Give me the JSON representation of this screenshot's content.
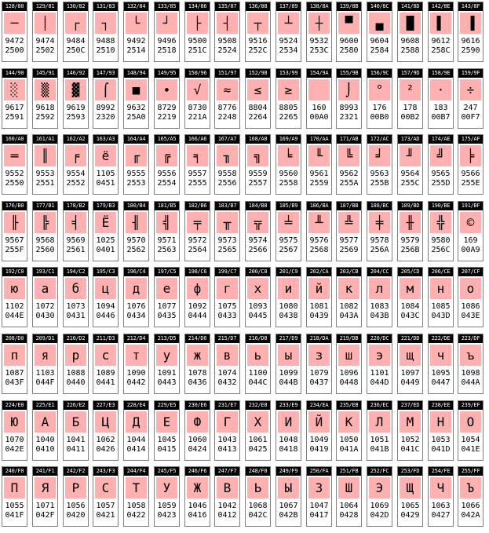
{
  "cells": [
    {
      "hdr": "128/80",
      "ch": "─",
      "dec": "9472",
      "hex": "2500"
    },
    {
      "hdr": "129/81",
      "ch": "│",
      "dec": "9474",
      "hex": "2502"
    },
    {
      "hdr": "130/82",
      "ch": "┌",
      "dec": "9484",
      "hex": "250C"
    },
    {
      "hdr": "131/83",
      "ch": "┐",
      "dec": "9488",
      "hex": "2510"
    },
    {
      "hdr": "132/84",
      "ch": "└",
      "dec": "9492",
      "hex": "2514"
    },
    {
      "hdr": "133/85",
      "ch": "┘",
      "dec": "9496",
      "hex": "2518"
    },
    {
      "hdr": "134/86",
      "ch": "├",
      "dec": "9500",
      "hex": "251C"
    },
    {
      "hdr": "135/87",
      "ch": "┤",
      "dec": "9508",
      "hex": "2524"
    },
    {
      "hdr": "136/88",
      "ch": "┬",
      "dec": "9516",
      "hex": "252C"
    },
    {
      "hdr": "137/89",
      "ch": "┴",
      "dec": "9524",
      "hex": "2534"
    },
    {
      "hdr": "138/8A",
      "ch": "┼",
      "dec": "9532",
      "hex": "253C"
    },
    {
      "hdr": "139/8B",
      "ch": "▀",
      "dec": "9600",
      "hex": "2580"
    },
    {
      "hdr": "140/8C",
      "ch": "▄",
      "dec": "9604",
      "hex": "2584"
    },
    {
      "hdr": "141/8D",
      "ch": "█",
      "dec": "9608",
      "hex": "2588"
    },
    {
      "hdr": "142/8E",
      "ch": "▌",
      "dec": "9612",
      "hex": "258C"
    },
    {
      "hdr": "143/8F",
      "ch": "▐",
      "dec": "9616",
      "hex": "2590"
    },
    {
      "hdr": "144/90",
      "ch": "░",
      "dec": "9617",
      "hex": "2591"
    },
    {
      "hdr": "145/91",
      "ch": "▒",
      "dec": "9618",
      "hex": "2592"
    },
    {
      "hdr": "146/92",
      "ch": "▓",
      "dec": "9619",
      "hex": "2593"
    },
    {
      "hdr": "147/93",
      "ch": "⌠",
      "dec": "8992",
      "hex": "2320"
    },
    {
      "hdr": "148/94",
      "ch": "■",
      "dec": "9632",
      "hex": "25A0"
    },
    {
      "hdr": "149/95",
      "ch": "∙",
      "dec": "8729",
      "hex": "2219"
    },
    {
      "hdr": "150/96",
      "ch": "√",
      "dec": "8730",
      "hex": "221A"
    },
    {
      "hdr": "151/97",
      "ch": "≈",
      "dec": "8776",
      "hex": "2248"
    },
    {
      "hdr": "152/98",
      "ch": "≤",
      "dec": "8804",
      "hex": "2264"
    },
    {
      "hdr": "153/99",
      "ch": "≥",
      "dec": "8805",
      "hex": "2265"
    },
    {
      "hdr": "154/9A",
      "ch": " ",
      "dec": "160",
      "hex": "00A0"
    },
    {
      "hdr": "155/9B",
      "ch": "⌡",
      "dec": "8993",
      "hex": "2321"
    },
    {
      "hdr": "156/9C",
      "ch": "°",
      "dec": "176",
      "hex": "00B0"
    },
    {
      "hdr": "157/9D",
      "ch": "²",
      "dec": "178",
      "hex": "00B2"
    },
    {
      "hdr": "158/9E",
      "ch": "·",
      "dec": "183",
      "hex": "00B7"
    },
    {
      "hdr": "159/9F",
      "ch": "÷",
      "dec": "247",
      "hex": "00F7"
    },
    {
      "hdr": "160/A0",
      "ch": "═",
      "dec": "9552",
      "hex": "2550"
    },
    {
      "hdr": "161/A1",
      "ch": "║",
      "dec": "9553",
      "hex": "2551"
    },
    {
      "hdr": "162/A2",
      "ch": "╒",
      "dec": "9554",
      "hex": "2552"
    },
    {
      "hdr": "163/A3",
      "ch": "ё",
      "dec": "1105",
      "hex": "0451"
    },
    {
      "hdr": "164/A4",
      "ch": "╓",
      "dec": "9555",
      "hex": "2553"
    },
    {
      "hdr": "165/A5",
      "ch": "╔",
      "dec": "9556",
      "hex": "2554"
    },
    {
      "hdr": "166/A6",
      "ch": "╕",
      "dec": "9557",
      "hex": "2555"
    },
    {
      "hdr": "167/A7",
      "ch": "╖",
      "dec": "9558",
      "hex": "2556"
    },
    {
      "hdr": "168/A8",
      "ch": "╗",
      "dec": "9559",
      "hex": "2557"
    },
    {
      "hdr": "169/A9",
      "ch": "╘",
      "dec": "9560",
      "hex": "2558"
    },
    {
      "hdr": "170/AA",
      "ch": "╙",
      "dec": "9561",
      "hex": "2559"
    },
    {
      "hdr": "171/AB",
      "ch": "╚",
      "dec": "9562",
      "hex": "255A"
    },
    {
      "hdr": "172/AC",
      "ch": "╛",
      "dec": "9563",
      "hex": "255B"
    },
    {
      "hdr": "173/AD",
      "ch": "╜",
      "dec": "9564",
      "hex": "255C"
    },
    {
      "hdr": "174/AE",
      "ch": "╝",
      "dec": "9565",
      "hex": "255D"
    },
    {
      "hdr": "175/AF",
      "ch": "╞",
      "dec": "9566",
      "hex": "255E"
    },
    {
      "hdr": "176/B0",
      "ch": "╟",
      "dec": "9567",
      "hex": "255F"
    },
    {
      "hdr": "177/B1",
      "ch": "╠",
      "dec": "9568",
      "hex": "2560"
    },
    {
      "hdr": "178/B2",
      "ch": "╡",
      "dec": "9569",
      "hex": "2561"
    },
    {
      "hdr": "179/B3",
      "ch": "Ё",
      "dec": "1025",
      "hex": "0401"
    },
    {
      "hdr": "180/B4",
      "ch": "╢",
      "dec": "9570",
      "hex": "2562"
    },
    {
      "hdr": "181/B5",
      "ch": "╣",
      "dec": "9571",
      "hex": "2563"
    },
    {
      "hdr": "182/B6",
      "ch": "╤",
      "dec": "9572",
      "hex": "2564"
    },
    {
      "hdr": "183/B7",
      "ch": "╥",
      "dec": "9573",
      "hex": "2565"
    },
    {
      "hdr": "184/B8",
      "ch": "╦",
      "dec": "9574",
      "hex": "2566"
    },
    {
      "hdr": "185/B9",
      "ch": "╧",
      "dec": "9575",
      "hex": "2567"
    },
    {
      "hdr": "186/BA",
      "ch": "╨",
      "dec": "9576",
      "hex": "2568"
    },
    {
      "hdr": "187/BB",
      "ch": "╩",
      "dec": "9577",
      "hex": "2569"
    },
    {
      "hdr": "188/BC",
      "ch": "╪",
      "dec": "9578",
      "hex": "256A"
    },
    {
      "hdr": "189/BD",
      "ch": "╫",
      "dec": "9579",
      "hex": "256B"
    },
    {
      "hdr": "190/BE",
      "ch": "╬",
      "dec": "9580",
      "hex": "256C"
    },
    {
      "hdr": "191/BF",
      "ch": "©",
      "dec": "169",
      "hex": "00A9"
    },
    {
      "hdr": "192/C0",
      "ch": "ю",
      "dec": "1102",
      "hex": "044E"
    },
    {
      "hdr": "193/C1",
      "ch": "а",
      "dec": "1072",
      "hex": "0430"
    },
    {
      "hdr": "194/C2",
      "ch": "б",
      "dec": "1073",
      "hex": "0431"
    },
    {
      "hdr": "195/C3",
      "ch": "ц",
      "dec": "1094",
      "hex": "0446"
    },
    {
      "hdr": "196/C4",
      "ch": "д",
      "dec": "1076",
      "hex": "0434"
    },
    {
      "hdr": "197/C5",
      "ch": "е",
      "dec": "1077",
      "hex": "0435"
    },
    {
      "hdr": "198/C6",
      "ch": "ф",
      "dec": "1092",
      "hex": "0444"
    },
    {
      "hdr": "199/C7",
      "ch": "г",
      "dec": "1075",
      "hex": "0433"
    },
    {
      "hdr": "200/C8",
      "ch": "х",
      "dec": "1093",
      "hex": "0445"
    },
    {
      "hdr": "201/C9",
      "ch": "и",
      "dec": "1080",
      "hex": "0438"
    },
    {
      "hdr": "202/CA",
      "ch": "й",
      "dec": "1081",
      "hex": "0439"
    },
    {
      "hdr": "203/CB",
      "ch": "к",
      "dec": "1082",
      "hex": "043A"
    },
    {
      "hdr": "204/CC",
      "ch": "л",
      "dec": "1083",
      "hex": "043B"
    },
    {
      "hdr": "205/CD",
      "ch": "м",
      "dec": "1084",
      "hex": "043C"
    },
    {
      "hdr": "206/CE",
      "ch": "н",
      "dec": "1085",
      "hex": "043D"
    },
    {
      "hdr": "207/CF",
      "ch": "о",
      "dec": "1086",
      "hex": "043E"
    },
    {
      "hdr": "208/D0",
      "ch": "п",
      "dec": "1087",
      "hex": "043F"
    },
    {
      "hdr": "209/D1",
      "ch": "я",
      "dec": "1103",
      "hex": "044F"
    },
    {
      "hdr": "210/D2",
      "ch": "р",
      "dec": "1088",
      "hex": "0440"
    },
    {
      "hdr": "211/D3",
      "ch": "с",
      "dec": "1089",
      "hex": "0441"
    },
    {
      "hdr": "212/D4",
      "ch": "т",
      "dec": "1090",
      "hex": "0442"
    },
    {
      "hdr": "213/D5",
      "ch": "у",
      "dec": "1091",
      "hex": "0443"
    },
    {
      "hdr": "214/D6",
      "ch": "ж",
      "dec": "1078",
      "hex": "0436"
    },
    {
      "hdr": "215/D7",
      "ch": "в",
      "dec": "1074",
      "hex": "0432"
    },
    {
      "hdr": "216/D8",
      "ch": "ь",
      "dec": "1100",
      "hex": "044C"
    },
    {
      "hdr": "217/D9",
      "ch": "ы",
      "dec": "1099",
      "hex": "044B"
    },
    {
      "hdr": "218/DA",
      "ch": "з",
      "dec": "1079",
      "hex": "0437"
    },
    {
      "hdr": "219/DB",
      "ch": "ш",
      "dec": "1096",
      "hex": "0448"
    },
    {
      "hdr": "220/DC",
      "ch": "э",
      "dec": "1101",
      "hex": "044D"
    },
    {
      "hdr": "221/DD",
      "ch": "щ",
      "dec": "1097",
      "hex": "0449"
    },
    {
      "hdr": "222/DE",
      "ch": "ч",
      "dec": "1095",
      "hex": "0447"
    },
    {
      "hdr": "223/DF",
      "ch": "ъ",
      "dec": "1098",
      "hex": "044A"
    },
    {
      "hdr": "224/E0",
      "ch": "Ю",
      "dec": "1070",
      "hex": "042E"
    },
    {
      "hdr": "225/E1",
      "ch": "А",
      "dec": "1040",
      "hex": "0410"
    },
    {
      "hdr": "226/E2",
      "ch": "Б",
      "dec": "1041",
      "hex": "0411"
    },
    {
      "hdr": "227/E3",
      "ch": "Ц",
      "dec": "1062",
      "hex": "0426"
    },
    {
      "hdr": "228/E4",
      "ch": "Д",
      "dec": "1044",
      "hex": "0414"
    },
    {
      "hdr": "229/E5",
      "ch": "Е",
      "dec": "1045",
      "hex": "0415"
    },
    {
      "hdr": "230/E6",
      "ch": "Ф",
      "dec": "1060",
      "hex": "0424"
    },
    {
      "hdr": "231/E7",
      "ch": "Г",
      "dec": "1043",
      "hex": "0413"
    },
    {
      "hdr": "232/E8",
      "ch": "Х",
      "dec": "1061",
      "hex": "0425"
    },
    {
      "hdr": "233/E9",
      "ch": "И",
      "dec": "1048",
      "hex": "0418"
    },
    {
      "hdr": "234/EA",
      "ch": "Й",
      "dec": "1049",
      "hex": "0419"
    },
    {
      "hdr": "235/EB",
      "ch": "К",
      "dec": "1050",
      "hex": "041A"
    },
    {
      "hdr": "236/EC",
      "ch": "Л",
      "dec": "1051",
      "hex": "041B"
    },
    {
      "hdr": "237/ED",
      "ch": "М",
      "dec": "1052",
      "hex": "041C"
    },
    {
      "hdr": "238/EE",
      "ch": "Н",
      "dec": "1053",
      "hex": "041D"
    },
    {
      "hdr": "239/EF",
      "ch": "О",
      "dec": "1054",
      "hex": "041E"
    },
    {
      "hdr": "240/F0",
      "ch": "П",
      "dec": "1055",
      "hex": "041F"
    },
    {
      "hdr": "241/F1",
      "ch": "Я",
      "dec": "1071",
      "hex": "042F"
    },
    {
      "hdr": "242/F2",
      "ch": "Р",
      "dec": "1056",
      "hex": "0420"
    },
    {
      "hdr": "243/F3",
      "ch": "С",
      "dec": "1057",
      "hex": "0421"
    },
    {
      "hdr": "244/F4",
      "ch": "Т",
      "dec": "1058",
      "hex": "0422"
    },
    {
      "hdr": "245/F5",
      "ch": "У",
      "dec": "1059",
      "hex": "0423"
    },
    {
      "hdr": "246/F6",
      "ch": "Ж",
      "dec": "1046",
      "hex": "0416"
    },
    {
      "hdr": "247/F7",
      "ch": "В",
      "dec": "1042",
      "hex": "0412"
    },
    {
      "hdr": "248/F8",
      "ch": "Ь",
      "dec": "1068",
      "hex": "042C"
    },
    {
      "hdr": "249/F9",
      "ch": "Ы",
      "dec": "1067",
      "hex": "042B"
    },
    {
      "hdr": "250/FA",
      "ch": "З",
      "dec": "1047",
      "hex": "0417"
    },
    {
      "hdr": "251/FB",
      "ch": "Ш",
      "dec": "1064",
      "hex": "0428"
    },
    {
      "hdr": "252/FC",
      "ch": "Э",
      "dec": "1069",
      "hex": "042D"
    },
    {
      "hdr": "253/FD",
      "ch": "Щ",
      "dec": "1065",
      "hex": "0429"
    },
    {
      "hdr": "254/FE",
      "ch": "Ч",
      "dec": "1063",
      "hex": "0427"
    },
    {
      "hdr": "255/FF",
      "ch": "Ъ",
      "dec": "1066",
      "hex": "042A"
    }
  ]
}
